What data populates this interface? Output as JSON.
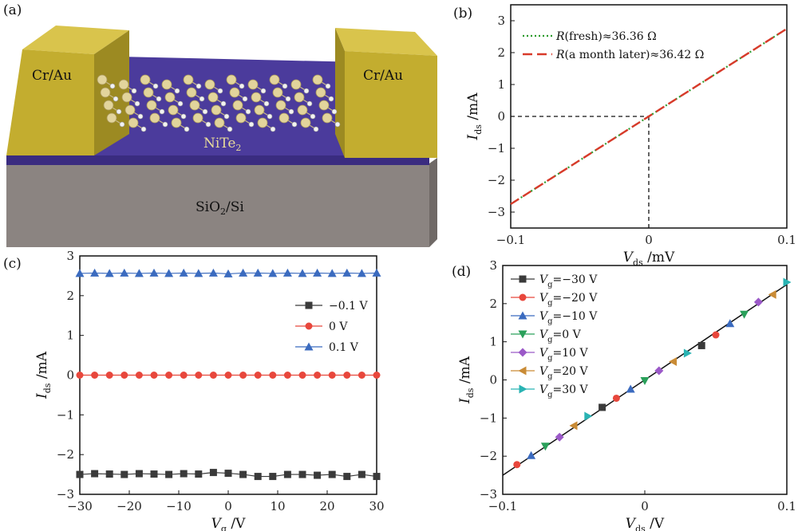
{
  "panels": {
    "a": {
      "label": "(a)",
      "contact_left": "Cr/Au",
      "contact_right": "Cr/Au",
      "channel": {
        "main": "NiTe",
        "sub": "2"
      },
      "substrate": {
        "pre": "SiO",
        "sub": "2",
        "post": "/Si"
      }
    },
    "b": {
      "label": "(b)"
    },
    "c": {
      "label": "(c)"
    },
    "d": {
      "label": "(d)"
    }
  },
  "colors": {
    "fresh": "#2e9c2e",
    "month": "#d83a2a",
    "black": "#3a3a3a",
    "red": "#e8473c",
    "blue": "#3b6bbf",
    "green": "#2aa05a",
    "purple": "#9b59c8",
    "orange": "#c98b35",
    "teal": "#29b3b3",
    "gold": "#cdb53a",
    "channel": "#4b3b9c",
    "substrate": "#8b8481"
  },
  "chart_data": [
    {
      "panel": "b",
      "type": "line",
      "xlabel": {
        "main": "V",
        "sub": "ds",
        "unit": " /mV"
      },
      "ylabel": {
        "main": "I",
        "sub": "ds",
        "unit": " /mA"
      },
      "xlim": [
        -0.1,
        0.1
      ],
      "ylim": [
        -3.5,
        3.5
      ],
      "xticks": [
        "−0.1",
        "0",
        "0.1"
      ],
      "yticks": [
        "−3",
        "−2",
        "−1",
        "0",
        "1",
        "2",
        "3"
      ],
      "series": [
        {
          "name_pre": "R",
          "name": "(fresh)≈36.36 Ω",
          "style": "dotted",
          "x": [
            -0.1,
            0.1
          ],
          "y": [
            -2.75,
            2.75
          ]
        },
        {
          "name_pre": "R",
          "name": "(a month later)≈36.42 Ω",
          "style": "dashed",
          "x": [
            -0.1,
            0.1
          ],
          "y": [
            -2.75,
            2.75
          ]
        }
      ],
      "guide_point": [
        0,
        0
      ]
    },
    {
      "panel": "c",
      "type": "line",
      "xlabel": {
        "main": "V",
        "sub": "g",
        "unit": " /V"
      },
      "ylabel": {
        "main": "I",
        "sub": "ds",
        "unit": " /mA"
      },
      "xlim": [
        -30,
        30
      ],
      "ylim": [
        -3,
        3
      ],
      "xticks": [
        "−30",
        "−20",
        "−10",
        "0",
        "10",
        "20",
        "30"
      ],
      "yticks": [
        "−3",
        "−2",
        "−1",
        "0",
        "1",
        "2",
        "3"
      ],
      "x": [
        -30,
        -27,
        -24,
        -21,
        -18,
        -15,
        -12,
        -9,
        -6,
        -3,
        0,
        3,
        6,
        9,
        12,
        15,
        18,
        21,
        24,
        27,
        30
      ],
      "series": [
        {
          "name": "−0.1 V",
          "marker": "square",
          "values": [
            -2.5,
            -2.48,
            -2.49,
            -2.5,
            -2.48,
            -2.49,
            -2.5,
            -2.48,
            -2.49,
            -2.45,
            -2.47,
            -2.5,
            -2.55,
            -2.55,
            -2.5,
            -2.5,
            -2.52,
            -2.5,
            -2.55,
            -2.5,
            -2.55
          ]
        },
        {
          "name": "0 V",
          "marker": "circle",
          "values": [
            0,
            0,
            0,
            0,
            0,
            0,
            0,
            0,
            0,
            0,
            0,
            0,
            0,
            0,
            0,
            0,
            0,
            0,
            0,
            0,
            0
          ]
        },
        {
          "name": "0.1 V",
          "marker": "triangle",
          "values": [
            2.56,
            2.57,
            2.56,
            2.57,
            2.56,
            2.57,
            2.56,
            2.57,
            2.56,
            2.57,
            2.55,
            2.57,
            2.57,
            2.56,
            2.57,
            2.56,
            2.57,
            2.56,
            2.57,
            2.56,
            2.57
          ]
        }
      ],
      "legend_position": "center-right"
    },
    {
      "panel": "d",
      "type": "scatter",
      "xlabel": {
        "main": "V",
        "sub": "ds",
        "unit": " /V"
      },
      "ylabel": {
        "main": "I",
        "sub": "ds",
        "unit": " /mA"
      },
      "xlim": [
        -0.1,
        0.1
      ],
      "ylim": [
        -3,
        3
      ],
      "xticks": [
        "−0.1",
        "0",
        "0.1"
      ],
      "yticks": [
        "−3",
        "−2",
        "−1",
        "0",
        "1",
        "2",
        "3"
      ],
      "fit_line": {
        "x": [
          -0.1,
          0.1
        ],
        "y": [
          -2.5,
          2.5
        ]
      },
      "series": [
        {
          "name_pre": "V",
          "name_sub": "g",
          "name": "=−30 V",
          "marker": "square",
          "x": [
            -0.03,
            0.04
          ],
          "y": [
            -0.72,
            0.9
          ]
        },
        {
          "name_pre": "V",
          "name_sub": "g",
          "name": "=−20 V",
          "marker": "circle",
          "x": [
            -0.09,
            -0.02,
            0.05
          ],
          "y": [
            -2.22,
            -0.48,
            1.18
          ]
        },
        {
          "name_pre": "V",
          "name_sub": "g",
          "name": "=−10 V",
          "marker": "triangle",
          "x": [
            -0.08,
            -0.01,
            0.06
          ],
          "y": [
            -1.98,
            -0.24,
            1.48
          ]
        },
        {
          "name_pre": "V",
          "name_sub": "g",
          "name": "=0 V",
          "marker": "triangle-down",
          "x": [
            -0.07,
            0.0,
            0.07
          ],
          "y": [
            -1.74,
            -0.02,
            1.72
          ]
        },
        {
          "name_pre": "V",
          "name_sub": "g",
          "name": "=10 V",
          "marker": "diamond",
          "x": [
            -0.06,
            0.01,
            0.08
          ],
          "y": [
            -1.5,
            0.24,
            2.04
          ]
        },
        {
          "name_pre": "V",
          "name_sub": "g",
          "name": "=20 V",
          "marker": "triangle-left",
          "x": [
            -0.05,
            0.02,
            0.09
          ],
          "y": [
            -1.2,
            0.48,
            2.24
          ]
        },
        {
          "name_pre": "V",
          "name_sub": "g",
          "name": "=30 V",
          "marker": "triangle-right",
          "x": [
            -0.04,
            0.03,
            0.1
          ],
          "y": [
            -0.95,
            0.7,
            2.56
          ]
        }
      ],
      "legend_position": "top-left"
    }
  ]
}
